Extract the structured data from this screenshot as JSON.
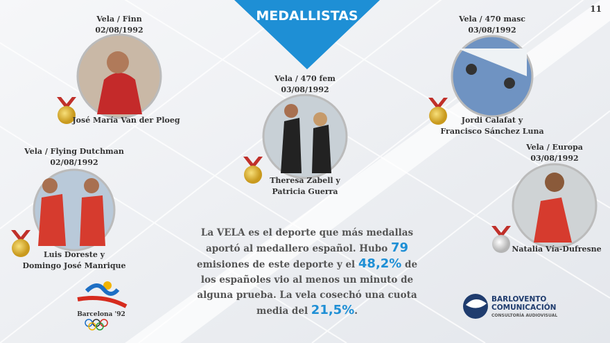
{
  "header": {
    "title": "MEDALLISTAS",
    "page_number": "11"
  },
  "medalists": [
    {
      "event": "Vela / Finn",
      "date": "02/08/1992",
      "names": [
        "José María Van der Ploeg"
      ]
    },
    {
      "event": "Vela / Flying Dutchman",
      "date": "02/08/1992",
      "names": [
        "Luis Doreste y",
        "Domingo José Manrique"
      ]
    },
    {
      "event": "Vela / 470 fem",
      "date": "03/08/1992",
      "names": [
        "Theresa Zabell y",
        "Patricia Guerra"
      ]
    },
    {
      "event": "Vela / 470 masc",
      "date": "03/08/1992",
      "names": [
        "Jordi Calafat y",
        "Francisco Sánchez Luna"
      ]
    },
    {
      "event": "Vela / Europa",
      "date": "03/08/1992",
      "names": [
        "Natalia Vía-Dufresne"
      ]
    }
  ],
  "summary": {
    "parts": [
      "La VELA es el deporte que más medallas aportó al medallero español. Hubo ",
      "79",
      " emisiones de este deporte y el ",
      "48,2%",
      " de los españoles vio al menos un minuto de alguna prueba. La vela cosechó una cuota media del ",
      "21,5%",
      "."
    ]
  },
  "logos": {
    "barcelona": "Barcelona '92",
    "company": [
      "BARLOVENTO",
      "COMUNICACIÓN"
    ],
    "company_tagline": "CONSULTORÍA AUDIOVISUAL"
  }
}
